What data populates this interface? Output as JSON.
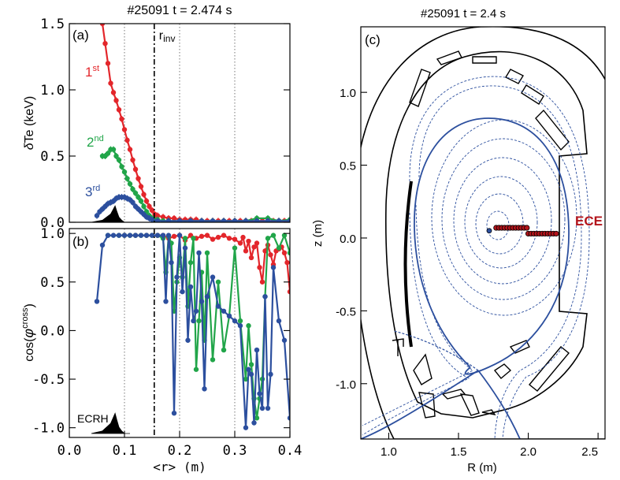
{
  "chart_data": [
    {
      "type": "line",
      "panel_label": "(a)",
      "title": "#25091   t = 2.474 s",
      "xlabel": "",
      "ylabel_prefix": "δ",
      "ylabel_main": "Te (keV)",
      "xlim": [
        0.0,
        0.4
      ],
      "ylim": [
        0.0,
        1.5
      ],
      "yticks": [
        "0.0",
        "0.5",
        "1.0",
        "1.5"
      ],
      "vline_x": 0.154,
      "vline_label": "r",
      "vline_label_sub": "inv",
      "series": [
        {
          "name": "1",
          "name_sup": "st",
          "color": "#e3262b",
          "x": [
            0.06,
            0.065,
            0.07,
            0.075,
            0.08,
            0.085,
            0.09,
            0.095,
            0.1,
            0.105,
            0.11,
            0.115,
            0.12,
            0.125,
            0.13,
            0.135,
            0.14,
            0.145,
            0.15,
            0.155,
            0.16,
            0.17,
            0.18,
            0.19,
            0.2,
            0.21,
            0.22,
            0.23,
            0.24,
            0.25,
            0.26,
            0.27,
            0.28,
            0.29,
            0.3,
            0.31,
            0.32,
            0.33,
            0.34,
            0.35,
            0.36,
            0.37,
            0.38,
            0.39,
            0.4
          ],
          "y": [
            1.5,
            1.35,
            1.2,
            1.05,
            0.98,
            0.92,
            0.85,
            0.78,
            0.7,
            0.62,
            0.55,
            0.47,
            0.4,
            0.33,
            0.27,
            0.21,
            0.16,
            0.12,
            0.09,
            0.06,
            0.05,
            0.04,
            0.03,
            0.03,
            0.02,
            0.02,
            0.02,
            0.02,
            0.01,
            0.01,
            0.01,
            0.01,
            0.01,
            0.01,
            0.01,
            0.01,
            0.01,
            0.01,
            0.01,
            0.01,
            0.01,
            0.01,
            0.01,
            0.01,
            0.01
          ]
        },
        {
          "name": "2",
          "name_sup": "nd",
          "color": "#21a549",
          "x": [
            0.06,
            0.065,
            0.07,
            0.075,
            0.08,
            0.085,
            0.09,
            0.095,
            0.1,
            0.105,
            0.11,
            0.115,
            0.12,
            0.125,
            0.13,
            0.135,
            0.14,
            0.145,
            0.15,
            0.155,
            0.16,
            0.17,
            0.18,
            0.2,
            0.22,
            0.24,
            0.26,
            0.28,
            0.3,
            0.32,
            0.34,
            0.36,
            0.38,
            0.4
          ],
          "y": [
            0.5,
            0.5,
            0.52,
            0.55,
            0.55,
            0.5,
            0.47,
            0.42,
            0.38,
            0.33,
            0.29,
            0.25,
            0.22,
            0.19,
            0.16,
            0.12,
            0.08,
            0.05,
            0.03,
            0.02,
            0.02,
            0.01,
            0.01,
            0.01,
            0.01,
            0.01,
            0.01,
            0.01,
            0.01,
            0.01,
            0.03,
            0.03,
            0.01,
            0.02
          ]
        },
        {
          "name": "3",
          "name_sup": "rd",
          "color": "#2c4f9e",
          "x": [
            0.05,
            0.055,
            0.06,
            0.065,
            0.07,
            0.075,
            0.08,
            0.085,
            0.09,
            0.095,
            0.1,
            0.105,
            0.11,
            0.115,
            0.12,
            0.125,
            0.13,
            0.135,
            0.14,
            0.145,
            0.15,
            0.16,
            0.18,
            0.2,
            0.22,
            0.24,
            0.26,
            0.28,
            0.3,
            0.32,
            0.34,
            0.36,
            0.38,
            0.4
          ],
          "y": [
            0.05,
            0.08,
            0.1,
            0.12,
            0.14,
            0.15,
            0.16,
            0.18,
            0.19,
            0.19,
            0.19,
            0.18,
            0.17,
            0.15,
            0.12,
            0.1,
            0.08,
            0.06,
            0.04,
            0.03,
            0.02,
            0.01,
            0.01,
            0.01,
            0.01,
            0.01,
            0.01,
            0.01,
            0.01,
            0.01,
            0.01,
            0.01,
            0.01,
            0.01
          ]
        }
      ],
      "deposition_profile": {
        "color": "#000000",
        "x": [
          0.04,
          0.05,
          0.06,
          0.065,
          0.07,
          0.075,
          0.08,
          0.083,
          0.086,
          0.09,
          0.095,
          0.1,
          0.11
        ],
        "y": [
          0.0,
          0.01,
          0.02,
          0.04,
          0.06,
          0.08,
          0.13,
          0.16,
          0.11,
          0.05,
          0.02,
          0.0,
          0.0
        ]
      }
    },
    {
      "type": "line",
      "panel_label": "(b)",
      "xlabel": "<r> (m)",
      "ylabel_main": "cos(",
      "ylabel_phi": "φ",
      "ylabel_sup": "cross",
      "ylabel_close": ")",
      "xlim": [
        0.0,
        0.4
      ],
      "ylim": [
        -1.1,
        1.05
      ],
      "xticks": [
        "0.0",
        "0.1",
        "0.2",
        "0.3",
        "0.4"
      ],
      "yticks": [
        "-1.0",
        "-0.5",
        "0.0",
        "0.5",
        "1.0"
      ],
      "vline_x": 0.154,
      "deposition_label": "ECRH",
      "series": [
        {
          "name": "",
          "color": "#e3262b",
          "x": [
            0.1,
            0.12,
            0.14,
            0.16,
            0.17,
            0.18,
            0.19,
            0.2,
            0.21,
            0.22,
            0.23,
            0.24,
            0.25,
            0.26,
            0.27,
            0.28,
            0.29,
            0.3,
            0.31,
            0.315,
            0.32,
            0.325,
            0.33,
            0.335,
            0.34,
            0.345,
            0.35,
            0.355,
            0.36,
            0.365,
            0.37,
            0.375,
            0.38,
            0.385,
            0.39,
            0.395,
            0.4
          ],
          "y": [
            0.98,
            0.98,
            0.98,
            0.98,
            0.98,
            0.95,
            0.97,
            0.98,
            0.93,
            0.98,
            0.95,
            0.97,
            0.98,
            0.94,
            0.96,
            0.98,
            0.95,
            0.94,
            0.9,
            0.96,
            0.82,
            0.92,
            0.75,
            0.86,
            0.9,
            0.65,
            0.5,
            0.82,
            0.88,
            0.78,
            0.68,
            0.82,
            0.84,
            0.86,
            0.8,
            0.7,
            0.4
          ]
        },
        {
          "name": "",
          "color": "#21a549",
          "x": [
            0.07,
            0.09,
            0.1,
            0.11,
            0.12,
            0.13,
            0.14,
            0.15,
            0.16,
            0.17,
            0.175,
            0.18,
            0.185,
            0.19,
            0.195,
            0.2,
            0.205,
            0.21,
            0.215,
            0.22,
            0.225,
            0.23,
            0.235,
            0.24,
            0.245,
            0.25,
            0.26,
            0.27,
            0.28,
            0.29,
            0.3,
            0.31,
            0.32,
            0.325,
            0.33,
            0.335,
            0.34,
            0.345,
            0.35,
            0.355,
            0.36,
            0.37,
            0.38,
            0.39,
            0.4
          ],
          "y": [
            0.98,
            0.98,
            0.98,
            0.98,
            0.98,
            0.98,
            0.98,
            0.98,
            0.98,
            0.95,
            0.6,
            0.97,
            0.9,
            0.2,
            0.5,
            0.75,
            0.55,
            0.95,
            0.25,
            0.7,
            0.95,
            -0.4,
            0.1,
            0.6,
            -0.1,
            0.8,
            -0.3,
            0.5,
            -0.2,
            0.15,
            0.85,
            0.1,
            -0.5,
            0.05,
            -0.35,
            -0.7,
            -0.9,
            -0.7,
            -0.5,
            0.35,
            0.95,
            0.98,
            0.85,
            0.98,
            0.8
          ]
        },
        {
          "name": "",
          "color": "#2c4f9e",
          "x": [
            0.05,
            0.06,
            0.07,
            0.08,
            0.09,
            0.1,
            0.11,
            0.12,
            0.13,
            0.14,
            0.15,
            0.16,
            0.17,
            0.175,
            0.18,
            0.185,
            0.19,
            0.195,
            0.2,
            0.205,
            0.21,
            0.215,
            0.22,
            0.225,
            0.23,
            0.235,
            0.24,
            0.245,
            0.25,
            0.26,
            0.27,
            0.28,
            0.29,
            0.3,
            0.31,
            0.32,
            0.325,
            0.33,
            0.335,
            0.34,
            0.345,
            0.35,
            0.355,
            0.36,
            0.365,
            0.37,
            0.38,
            0.39,
            0.4
          ],
          "y": [
            0.3,
            0.88,
            0.98,
            0.98,
            0.98,
            0.98,
            0.98,
            0.98,
            0.98,
            0.98,
            0.98,
            0.98,
            0.98,
            0.3,
            0.98,
            0.7,
            -0.85,
            0.55,
            0.98,
            0.4,
            0.85,
            -0.1,
            0.45,
            0.1,
            0.2,
            0.8,
            0.3,
            -0.6,
            0.35,
            0.55,
            0.25,
            0.2,
            0.15,
            0.1,
            0.05,
            -1.0,
            -0.4,
            -0.45,
            -0.95,
            -0.2,
            -0.65,
            -0.8,
            0.35,
            -0.8,
            -0.45,
            0.65,
            0.1,
            -0.1,
            -0.9
          ]
        }
      ],
      "deposition_profile": {
        "color": "#000000",
        "x": [
          0.04,
          0.05,
          0.06,
          0.065,
          0.07,
          0.075,
          0.08,
          0.083,
          0.086,
          0.09,
          0.095,
          0.1,
          0.11
        ],
        "y": [
          0.0,
          0.01,
          0.02,
          0.04,
          0.06,
          0.08,
          0.13,
          0.16,
          0.11,
          0.05,
          0.02,
          0.0,
          0.0
        ]
      }
    },
    {
      "type": "diagram",
      "panel_label": "(c)",
      "title": "#25091   t = 2.4 s",
      "xlabel": "R (m)",
      "ylabel": "z (m)",
      "xlim": [
        0.8,
        2.55
      ],
      "ylim": [
        -1.38,
        1.45
      ],
      "xticks": [
        "1.0",
        "1.5",
        "2.0",
        "2.5"
      ],
      "yticks": [
        "1.0",
        "0.5",
        "0.0",
        "-0.5",
        "-1.0"
      ],
      "magnetic_axis": {
        "R": 1.72,
        "z": 0.05
      },
      "flux_surface_color": "#2c4f9e",
      "ece_label": "ECE",
      "ece_color": "#b3141b",
      "ece_channels": {
        "R": [
          1.77,
          1.79,
          1.81,
          1.83,
          1.85,
          1.87,
          1.89,
          1.91,
          1.93,
          1.95,
          1.97,
          1.99,
          2.0,
          2.02,
          2.04,
          2.06,
          2.08,
          2.1,
          2.12,
          2.14,
          2.16,
          2.18,
          2.2
        ],
        "z": [
          0.07,
          0.07,
          0.07,
          0.07,
          0.07,
          0.07,
          0.07,
          0.07,
          0.07,
          0.07,
          0.07,
          0.07,
          0.03,
          0.03,
          0.03,
          0.03,
          0.03,
          0.03,
          0.03,
          0.03,
          0.03,
          0.03,
          0.03
        ]
      }
    }
  ]
}
